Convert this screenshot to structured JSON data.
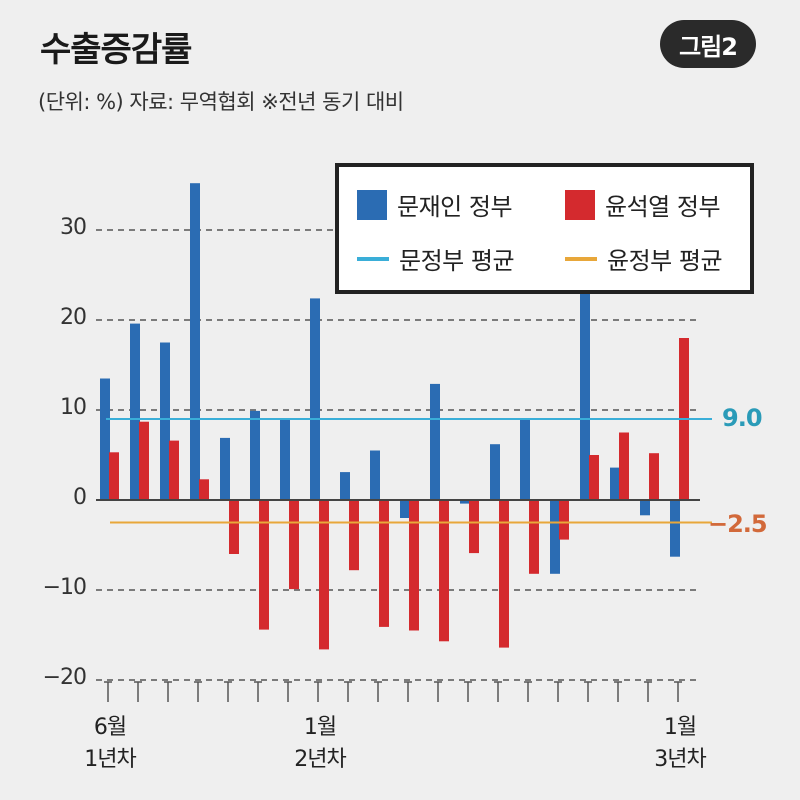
{
  "header": {
    "title": "수출증감률",
    "badge": "그림2",
    "subtitle": "(단위: %) 자료: 무역협회   ※전년 동기 대비"
  },
  "legend": {
    "moon_bar": "문재인 정부",
    "yoon_bar": "윤석열 정부",
    "moon_avg": "문정부 평균",
    "yoon_avg": "윤정부 평균"
  },
  "colors": {
    "moon": "#2b6cb3",
    "yoon": "#d42a2e",
    "moon_avg": "#3aaed8",
    "yoon_avg": "#e8a73a",
    "moon_avg_label": "#2a9bb8",
    "yoon_avg_label": "#d2693a"
  },
  "avg_labels": {
    "moon": "9.0",
    "yoon": "−2.5"
  },
  "chart_data": {
    "type": "bar",
    "title": "수출증감률",
    "xlabel": "",
    "ylabel": "%",
    "ylim": [
      -20,
      35
    ],
    "yticks": [
      30,
      20,
      10,
      0,
      -10,
      -20
    ],
    "ytick_labels": [
      "30",
      "20",
      "10",
      "0",
      "−10",
      "−20"
    ],
    "grid": true,
    "legend_position": "top-right",
    "categories": [
      "1",
      "2",
      "3",
      "4",
      "5",
      "6",
      "7",
      "8",
      "9",
      "10",
      "11",
      "12",
      "13",
      "14",
      "15",
      "16",
      "17",
      "18",
      "19",
      "20"
    ],
    "x_labels": [
      {
        "index": 0,
        "line1": "6월",
        "line2": "1년차"
      },
      {
        "index": 7,
        "line1": "1월",
        "line2": "2년차"
      },
      {
        "index": 19,
        "line1": "1월",
        "line2": "3년차"
      }
    ],
    "series": [
      {
        "name": "문재인 정부",
        "values": [
          13.5,
          19.6,
          17.5,
          35.2,
          6.9,
          9.9,
          8.9,
          22.4,
          3.1,
          5.5,
          -2.0,
          12.9,
          -0.4,
          6.2,
          8.9,
          -8.2,
          31.0,
          3.6,
          -1.7,
          -6.3
        ]
      },
      {
        "name": "윤석열 정부",
        "values": [
          5.3,
          8.7,
          6.6,
          2.3,
          -6.0,
          -14.4,
          -9.9,
          -16.6,
          -7.8,
          -14.1,
          -14.5,
          -15.7,
          -5.9,
          -16.4,
          -8.2,
          -4.4,
          5.0,
          7.5,
          5.2,
          18.0
        ]
      }
    ],
    "reference_lines": [
      {
        "name": "문정부 평균",
        "value": 9.0
      },
      {
        "name": "윤정부 평균",
        "value": -2.5
      }
    ]
  }
}
